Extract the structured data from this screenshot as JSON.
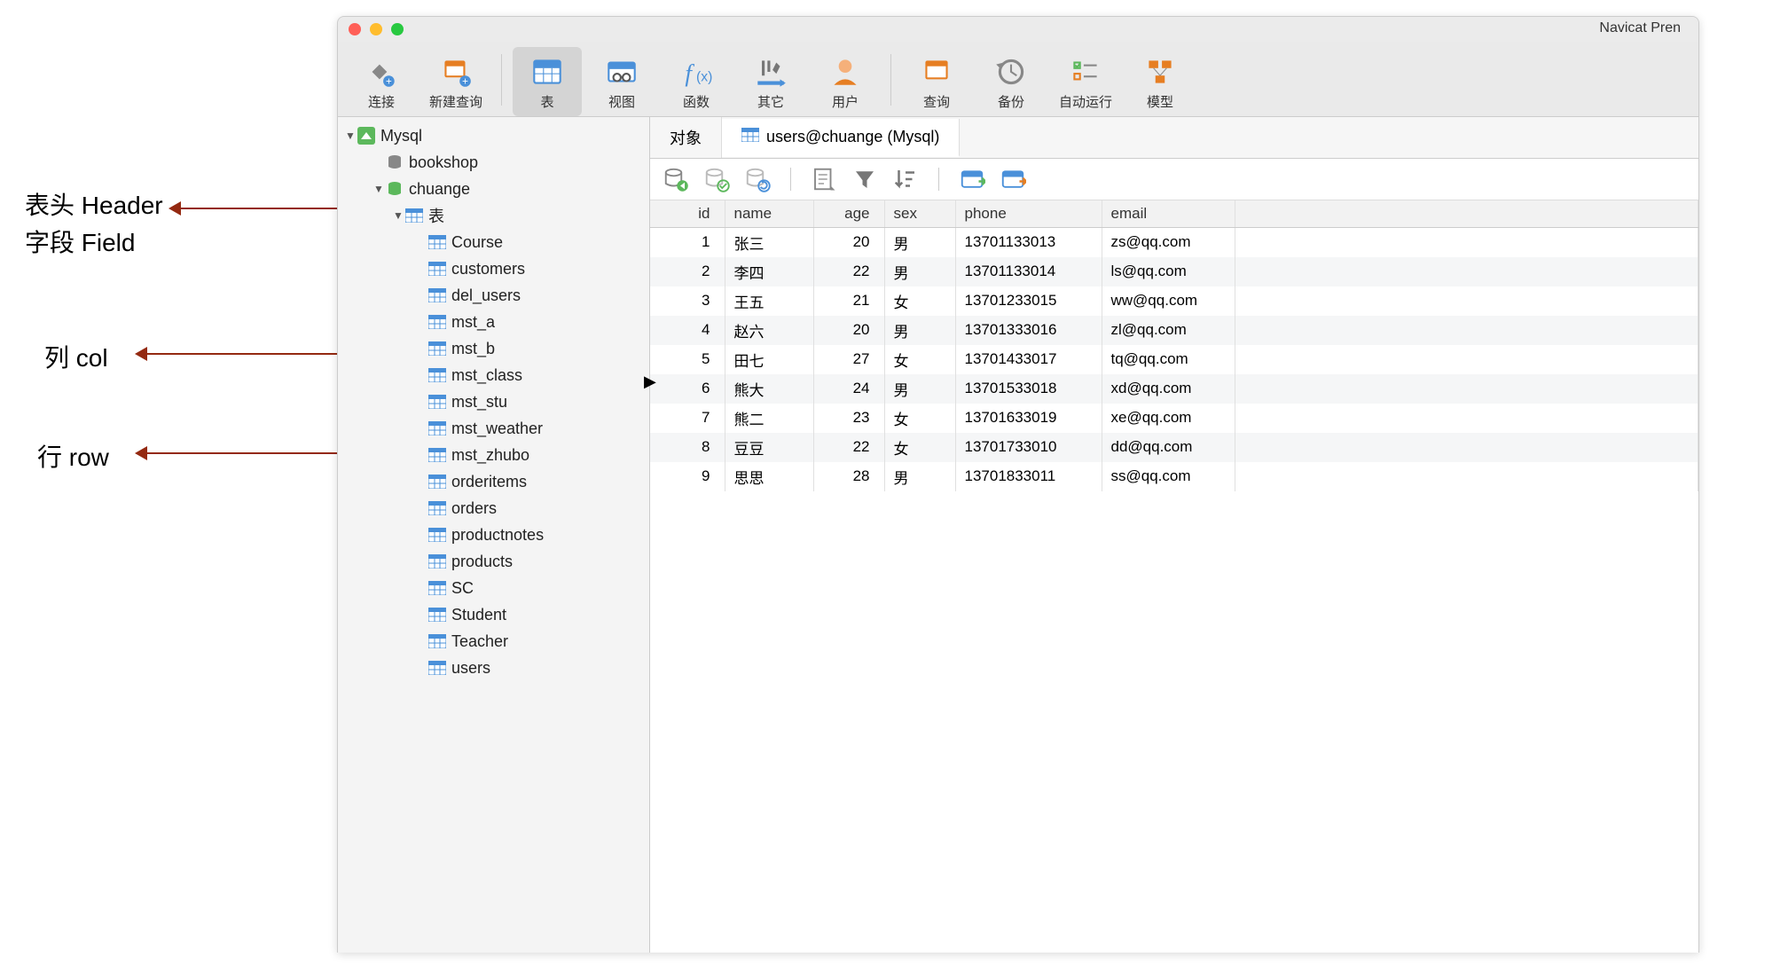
{
  "annotations": {
    "header1": "表头 Header",
    "header2": "字段 Field",
    "col": "列 col",
    "row": "行 row"
  },
  "window": {
    "title": "Navicat Pren"
  },
  "toolbar": [
    {
      "name": "connect",
      "label": "连接"
    },
    {
      "name": "new-query",
      "label": "新建查询"
    },
    {
      "name": "table",
      "label": "表"
    },
    {
      "name": "view",
      "label": "视图"
    },
    {
      "name": "function",
      "label": "函数"
    },
    {
      "name": "other",
      "label": "其它"
    },
    {
      "name": "user",
      "label": "用户"
    },
    {
      "name": "query",
      "label": "查询"
    },
    {
      "name": "backup",
      "label": "备份"
    },
    {
      "name": "auto-run",
      "label": "自动运行"
    },
    {
      "name": "model",
      "label": "模型"
    }
  ],
  "sidebar": {
    "root": "Mysql",
    "db1": "bookshop",
    "db2": "chuange",
    "tables_label": "表",
    "tables": [
      "Course",
      "customers",
      "del_users",
      "mst_a",
      "mst_b",
      "mst_class",
      "mst_stu",
      "mst_weather",
      "mst_zhubo",
      "orderitems",
      "orders",
      "productnotes",
      "products",
      "SC",
      "Student",
      "Teacher",
      "users"
    ]
  },
  "tabs": {
    "objects": "对象",
    "active": "users@chuange (Mysql)"
  },
  "columns": [
    "id",
    "name",
    "age",
    "sex",
    "phone",
    "email"
  ],
  "rows": [
    {
      "id": "1",
      "name": "张三",
      "age": "20",
      "sex": "男",
      "phone": "13701133013",
      "email": "zs@qq.com"
    },
    {
      "id": "2",
      "name": "李四",
      "age": "22",
      "sex": "男",
      "phone": "13701133014",
      "email": "ls@qq.com"
    },
    {
      "id": "3",
      "name": "王五",
      "age": "21",
      "sex": "女",
      "phone": "13701233015",
      "email": "ww@qq.com"
    },
    {
      "id": "4",
      "name": "赵六",
      "age": "20",
      "sex": "男",
      "phone": "13701333016",
      "email": "zl@qq.com"
    },
    {
      "id": "5",
      "name": "田七",
      "age": "27",
      "sex": "女",
      "phone": "13701433017",
      "email": "tq@qq.com"
    },
    {
      "id": "6",
      "name": "熊大",
      "age": "24",
      "sex": "男",
      "phone": "13701533018",
      "email": "xd@qq.com"
    },
    {
      "id": "7",
      "name": "熊二",
      "age": "23",
      "sex": "女",
      "phone": "13701633019",
      "email": "xe@qq.com"
    },
    {
      "id": "8",
      "name": "豆豆",
      "age": "22",
      "sex": "女",
      "phone": "13701733010",
      "email": "dd@qq.com"
    },
    {
      "id": "9",
      "name": "思思",
      "age": "28",
      "sex": "男",
      "phone": "13701833011",
      "email": "ss@qq.com"
    }
  ],
  "colors": {
    "arrow": "#942911",
    "highlight": "#c0392b",
    "green": "#5cb85c",
    "orange": "#e67e22",
    "blue": "#4a90d9"
  }
}
